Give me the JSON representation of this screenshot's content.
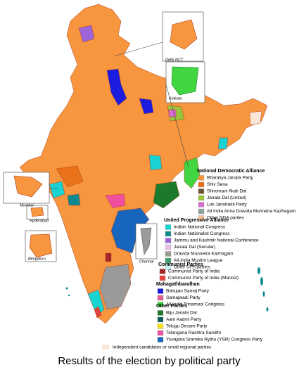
{
  "title": "Results of the election by political party",
  "insets": [
    "Delhi NCT",
    "Kolkata",
    "Mumbai",
    "Hyderabad",
    "Bengaluru",
    "Chennai"
  ],
  "legend": [
    {
      "heading": "National Democratic Alliance",
      "items": [
        {
          "label": "Bharatiya Janata Party",
          "color": "#f7963f"
        },
        {
          "label": "Shiv Sena",
          "color": "#e8711a"
        },
        {
          "label": "Shiromani Akali Dal",
          "color": "#6e5532"
        },
        {
          "label": "Janata Dal (United)",
          "color": "#9ac43c"
        },
        {
          "label": "Lok Janshakti Party",
          "color": "#d66fd1"
        },
        {
          "label": "All India Anna Dravida Munnetra Kazhagam",
          "color": "#8aa29b"
        },
        {
          "label": "Other NDA parties",
          "color": "#f8c39c"
        }
      ]
    },
    {
      "heading": "United Progressive Alliance",
      "items": [
        {
          "label": "Indian National Congress",
          "color": "#19d3d3"
        },
        {
          "label": "Indian Nationalist Congress",
          "color": "#0d8a8f"
        },
        {
          "label": "Jammu and Kashmir National Conference",
          "color": "#9d66d8"
        },
        {
          "label": "Janata Dal (Secular)",
          "color": "#e6c0e8"
        },
        {
          "label": "Dravida Munnetra Kazhagam",
          "color": "#9a9a9a"
        },
        {
          "label": "All-India Muslim League",
          "color": "#3fa070"
        },
        {
          "label": "Other UPA parties",
          "color": "#c8f2f2"
        }
      ]
    },
    {
      "heading": "Communist Parties",
      "items": [
        {
          "label": "Communist Party of India",
          "color": "#a3262a"
        },
        {
          "label": "Communist Party of India (Marxist)",
          "color": "#e2453a"
        }
      ]
    },
    {
      "heading": "Mahagathbandhan",
      "items": [
        {
          "label": "Bahujan Samaj Party",
          "color": "#1c1cde"
        },
        {
          "label": "Samajwadi Party",
          "color": "#e25a8e"
        },
        {
          "label": "All India Trinamool Congress",
          "color": "#41d641"
        }
      ]
    },
    {
      "heading": "Other Parties",
      "items": [
        {
          "label": "Biju Janata Dal",
          "color": "#1c7a2c"
        },
        {
          "label": "Aam Aadmi Party",
          "color": "#125c5c"
        },
        {
          "label": "Telugu Desam Party",
          "color": "#f7e01e"
        },
        {
          "label": "Telangana Rashtra Samithi",
          "color": "#f04fa0"
        },
        {
          "label": "Yuvajana Sramika Rythu (YSR) Congress Party",
          "color": "#1865bd"
        }
      ]
    }
  ],
  "other": {
    "label": "Independent candidates or small regional parties",
    "color": "#fbe6d6"
  }
}
